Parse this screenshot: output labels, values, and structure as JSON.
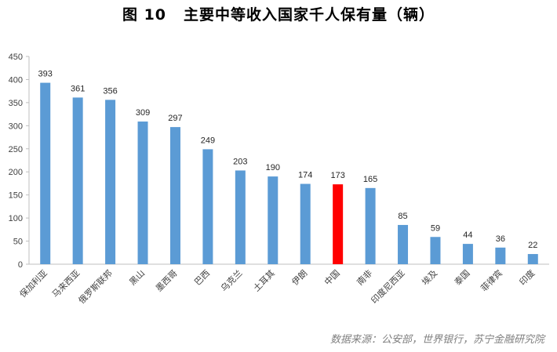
{
  "figure": {
    "number_label": "图 10",
    "title_text": "主要中等收入国家千人保有量（辆）",
    "source": "数据来源：公安部，世界银行，苏宁金融研究院"
  },
  "colors": {
    "bar": "#5b9bd5",
    "highlight": "#ff0000",
    "axis": "#bfbfbf"
  },
  "chart_data": {
    "type": "bar",
    "title": "主要中等收入国家千人保有量（辆）",
    "xlabel": "",
    "ylabel": "",
    "ylim": [
      0,
      450
    ],
    "yticks": [
      0,
      50,
      100,
      150,
      200,
      250,
      300,
      350,
      400,
      450
    ],
    "grid": false,
    "legend": "none",
    "highlight_category": "中国",
    "categories": [
      "保加利亚",
      "马来西亚",
      "俄罗斯联邦",
      "黑山",
      "墨西哥",
      "巴西",
      "乌克兰",
      "土耳其",
      "伊朗",
      "中国",
      "南非",
      "印度尼西亚",
      "埃及",
      "泰国",
      "菲律宾",
      "印度"
    ],
    "values": [
      393,
      361,
      356,
      309,
      297,
      249,
      203,
      190,
      174,
      173,
      165,
      85,
      59,
      44,
      36,
      22
    ]
  }
}
